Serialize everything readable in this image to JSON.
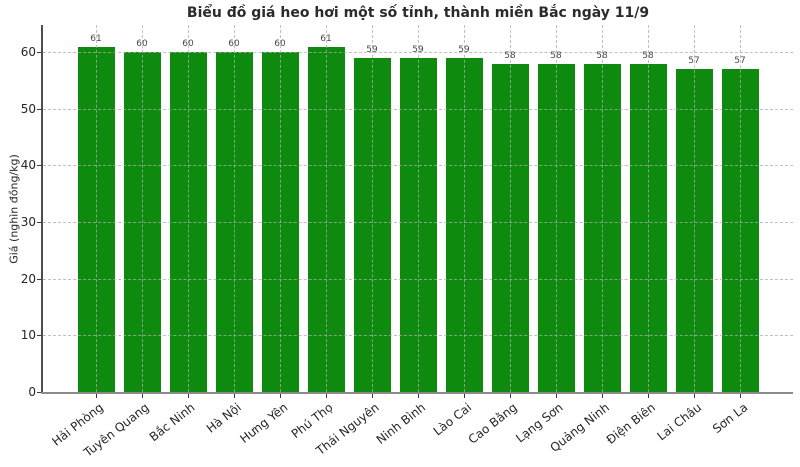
{
  "chart_data": {
    "type": "bar",
    "title": "Biểu đồ giá heo hơi một số tỉnh, thành miền Bắc ngày 11/9",
    "xlabel": "",
    "ylabel": "Giá (nghìn đồng/kg)",
    "categories": [
      "Hải Phòng",
      "Tuyên Quang",
      "Bắc Ninh",
      "Hà Nội",
      "Hưng Yên",
      "Phú Thọ",
      "Thái Nguyên",
      "Ninh Bình",
      "Lào Cai",
      "Cao Bằng",
      "Lạng Sơn",
      "Quảng Ninh",
      "Điện Biên",
      "Lai Châu",
      "Sơn La"
    ],
    "values": [
      61,
      60,
      60,
      60,
      60,
      61,
      59,
      59,
      59,
      58,
      58,
      58,
      58,
      57,
      57
    ],
    "value_labels_shown": true,
    "yticks": [
      0,
      10,
      20,
      30,
      40,
      50,
      60
    ],
    "ylim": [
      0,
      64.8
    ],
    "grid": "dashed horizontal at each y-tick and vertical at each bar center, drawn over bars",
    "legend": "none",
    "x_tick_label_rotation_deg": -38
  },
  "colors": {
    "bar": "#0e8b0e",
    "grid": "rgba(172,172,172,0.75)",
    "spine_left": "#4d4d4d",
    "axis_bottom": "#8a8a8a",
    "title_text": "#2b2b2b",
    "tick_text": "#262626",
    "value_label_text": "#4a4a4a",
    "background": "#ffffff"
  }
}
